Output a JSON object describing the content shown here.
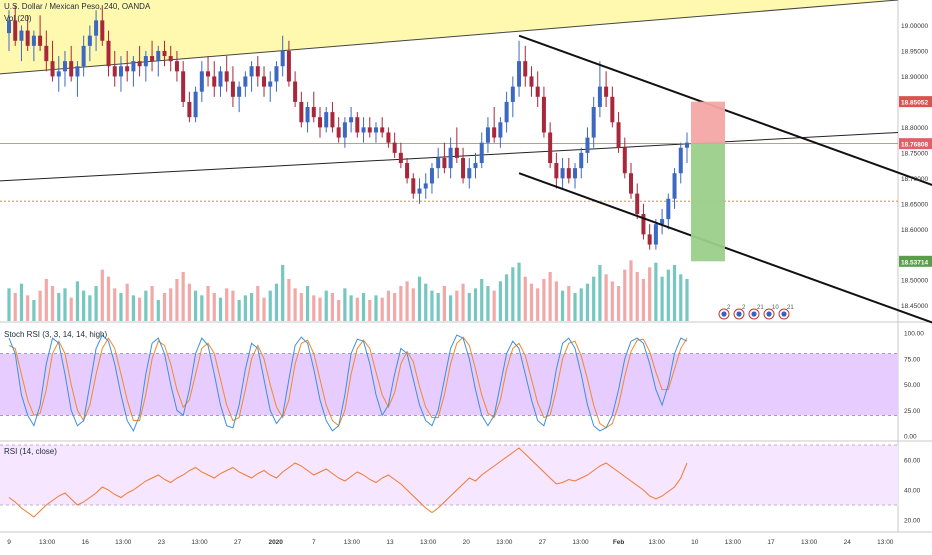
{
  "header": {
    "symbol_line": "U.S. Dollar / Mexican Peso, 240, OANDA",
    "volume_label": "Vol (20)"
  },
  "colors": {
    "up": "#3c68c2",
    "down": "#a8273a",
    "vol_up": "#76c7c0",
    "vol_down": "#f3a8a8",
    "zone_fill": "#fff9b0",
    "stoch_band": "#e6ccff",
    "rsi_band": "#f6e6ff",
    "stoch_k": "#3f8fdc",
    "stoch_d": "#f08a2a",
    "rsi_line": "#f07a30",
    "price_line": "#e0606a",
    "support_line": "#f2a23a",
    "stop_zone": "#f6a6a6",
    "target_zone": "#9ccf8a"
  },
  "price_axis": {
    "ticks": [
      "19.00000",
      "18.95000",
      "18.90000",
      "18.85052",
      "18.80000",
      "18.76808",
      "18.75000",
      "18.70000",
      "18.65000",
      "18.60000",
      "18.53714",
      "18.50000",
      "18.45000"
    ],
    "current_price": "18.76808",
    "stop_price": "18.85052",
    "target_price": "18.53714"
  },
  "stoch_axis": {
    "ticks": [
      "100.00",
      "75.00",
      "50.00",
      "25.00",
      "0.00"
    ]
  },
  "rsi_axis": {
    "ticks": [
      "60.00",
      "40.00",
      "20.00"
    ]
  },
  "time_axis": {
    "ticks": [
      "9",
      "13:00",
      "16",
      "13:00",
      "23",
      "13:00",
      "27",
      "2020",
      "7",
      "13:00",
      "13",
      "13:00",
      "20",
      "13:00",
      "27",
      "13:00",
      "Feb",
      "13:00",
      "10",
      "13:00",
      "17",
      "13:00",
      "24",
      "13:00"
    ]
  },
  "indicators": {
    "stoch_label": "Stoch RSI (3, 3, 14, 14, high)",
    "rsi_label": "RSI (14, close)"
  },
  "events": {
    "labels": [
      "2",
      "2",
      "21",
      "10",
      "21"
    ]
  },
  "chart_data": {
    "type": "candlestick",
    "title": "U.S. Dollar / Mexican Peso, 240, OANDA",
    "interval": "240",
    "x_tick_labels": [
      "9",
      "13:00",
      "16",
      "13:00",
      "23",
      "13:00",
      "27",
      "2020",
      "7",
      "13:00",
      "13",
      "13:00",
      "20",
      "13:00",
      "27",
      "13:00",
      "Feb",
      "13:00",
      "10",
      "13:00",
      "17",
      "13:00",
      "24",
      "13:00"
    ],
    "ylim": [
      18.42,
      19.05
    ],
    "candles": {
      "columns": [
        "open",
        "high",
        "low",
        "close"
      ],
      "rows": [
        [
          18.985,
          19.03,
          18.95,
          19.01
        ],
        [
          19.01,
          19.04,
          18.96,
          18.97
        ],
        [
          18.97,
          19.0,
          18.93,
          18.99
        ],
        [
          18.99,
          19.02,
          18.95,
          18.96
        ],
        [
          18.96,
          18.99,
          18.93,
          18.98
        ],
        [
          18.98,
          19.02,
          18.95,
          18.96
        ],
        [
          18.96,
          18.99,
          18.91,
          18.93
        ],
        [
          18.93,
          18.97,
          18.89,
          18.9
        ],
        [
          18.9,
          18.94,
          18.87,
          18.91
        ],
        [
          18.91,
          18.95,
          18.88,
          18.93
        ],
        [
          18.93,
          18.96,
          18.89,
          18.9
        ],
        [
          18.9,
          18.93,
          18.86,
          18.92
        ],
        [
          18.92,
          18.98,
          18.9,
          18.96
        ],
        [
          18.96,
          19.0,
          18.93,
          18.98
        ],
        [
          18.98,
          19.03,
          18.95,
          19.01
        ],
        [
          19.01,
          19.04,
          18.96,
          18.97
        ],
        [
          18.97,
          18.99,
          18.9,
          18.92
        ],
        [
          18.92,
          18.95,
          18.88,
          18.9
        ],
        [
          18.9,
          18.94,
          18.87,
          18.92
        ],
        [
          18.92,
          18.95,
          18.89,
          18.91
        ],
        [
          18.91,
          18.94,
          18.88,
          18.93
        ],
        [
          18.93,
          18.96,
          18.9,
          18.92
        ],
        [
          18.92,
          18.95,
          18.89,
          18.94
        ],
        [
          18.94,
          18.97,
          18.91,
          18.93
        ],
        [
          18.93,
          18.96,
          18.9,
          18.95
        ],
        [
          18.95,
          18.97,
          18.92,
          18.94
        ],
        [
          18.94,
          18.96,
          18.91,
          18.93
        ],
        [
          18.93,
          18.95,
          18.89,
          18.91
        ],
        [
          18.91,
          18.93,
          18.84,
          18.85
        ],
        [
          18.85,
          18.87,
          18.81,
          18.82
        ],
        [
          18.82,
          18.88,
          18.81,
          18.87
        ],
        [
          18.87,
          18.93,
          18.85,
          18.91
        ],
        [
          18.91,
          18.94,
          18.88,
          18.9
        ],
        [
          18.9,
          18.93,
          18.86,
          18.88
        ],
        [
          18.88,
          18.92,
          18.86,
          18.91
        ],
        [
          18.91,
          18.94,
          18.87,
          18.89
        ],
        [
          18.89,
          18.92,
          18.84,
          18.86
        ],
        [
          18.86,
          18.89,
          18.83,
          18.88
        ],
        [
          18.88,
          18.91,
          18.86,
          18.9
        ],
        [
          18.9,
          18.93,
          18.87,
          18.92
        ],
        [
          18.92,
          18.94,
          18.88,
          18.9
        ],
        [
          18.9,
          18.92,
          18.86,
          18.88
        ],
        [
          18.88,
          18.91,
          18.85,
          18.89
        ],
        [
          18.89,
          18.93,
          18.87,
          18.92
        ],
        [
          18.92,
          18.98,
          18.9,
          18.95
        ],
        [
          18.95,
          18.97,
          18.88,
          18.89
        ],
        [
          18.89,
          18.91,
          18.84,
          18.85
        ],
        [
          18.85,
          18.87,
          18.8,
          18.81
        ],
        [
          18.81,
          18.85,
          18.79,
          18.84
        ],
        [
          18.84,
          18.87,
          18.81,
          18.82
        ],
        [
          18.82,
          18.84,
          18.78,
          18.8
        ],
        [
          18.8,
          18.84,
          18.79,
          18.83
        ],
        [
          18.83,
          18.85,
          18.79,
          18.8
        ],
        [
          18.8,
          18.82,
          18.77,
          18.78
        ],
        [
          18.78,
          18.82,
          18.76,
          18.81
        ],
        [
          18.81,
          18.84,
          18.79,
          18.82
        ],
        [
          18.82,
          18.83,
          18.78,
          18.79
        ],
        [
          18.79,
          18.82,
          18.77,
          18.8
        ],
        [
          18.8,
          18.82,
          18.78,
          18.79
        ],
        [
          18.79,
          18.81,
          18.77,
          18.8
        ],
        [
          18.8,
          18.82,
          18.78,
          18.79
        ],
        [
          18.79,
          18.8,
          18.76,
          18.77
        ],
        [
          18.77,
          18.79,
          18.74,
          18.75
        ],
        [
          18.75,
          18.77,
          18.72,
          18.73
        ],
        [
          18.73,
          18.74,
          18.69,
          18.7
        ],
        [
          18.7,
          18.71,
          18.66,
          18.67
        ],
        [
          18.67,
          18.7,
          18.65,
          18.68
        ],
        [
          18.68,
          18.71,
          18.66,
          18.69
        ],
        [
          18.69,
          18.73,
          18.67,
          18.72
        ],
        [
          18.72,
          18.76,
          18.7,
          18.74
        ],
        [
          18.74,
          18.77,
          18.71,
          18.72
        ],
        [
          18.72,
          18.78,
          18.7,
          18.76
        ],
        [
          18.76,
          18.8,
          18.73,
          18.74
        ],
        [
          18.74,
          18.76,
          18.69,
          18.7
        ],
        [
          18.7,
          18.74,
          18.68,
          18.72
        ],
        [
          18.72,
          18.75,
          18.7,
          18.73
        ],
        [
          18.73,
          18.79,
          18.72,
          18.77
        ],
        [
          18.77,
          18.82,
          18.75,
          18.8
        ],
        [
          18.8,
          18.84,
          18.77,
          18.78
        ],
        [
          18.78,
          18.82,
          18.76,
          18.81
        ],
        [
          18.81,
          18.87,
          18.79,
          18.85
        ],
        [
          18.85,
          18.9,
          18.82,
          18.88
        ],
        [
          18.88,
          18.97,
          18.86,
          18.93
        ],
        [
          18.93,
          18.96,
          18.88,
          18.9
        ],
        [
          18.9,
          18.92,
          18.86,
          18.88
        ],
        [
          18.88,
          18.91,
          18.84,
          18.86
        ],
        [
          18.86,
          18.88,
          18.78,
          18.79
        ],
        [
          18.79,
          18.81,
          18.72,
          18.73
        ],
        [
          18.73,
          18.75,
          18.68,
          18.7
        ],
        [
          18.7,
          18.74,
          18.68,
          18.72
        ],
        [
          18.72,
          18.74,
          18.69,
          18.7
        ],
        [
          18.7,
          18.73,
          18.68,
          18.72
        ],
        [
          18.72,
          18.76,
          18.7,
          18.75
        ],
        [
          18.75,
          18.8,
          18.73,
          18.78
        ],
        [
          18.78,
          18.86,
          18.76,
          18.84
        ],
        [
          18.84,
          18.93,
          18.82,
          18.88
        ],
        [
          18.88,
          18.91,
          18.84,
          18.86
        ],
        [
          18.86,
          18.88,
          18.8,
          18.81
        ],
        [
          18.81,
          18.83,
          18.75,
          18.76
        ],
        [
          18.76,
          18.78,
          18.7,
          18.71
        ],
        [
          18.71,
          18.73,
          18.66,
          18.67
        ],
        [
          18.67,
          18.69,
          18.62,
          18.63
        ],
        [
          18.63,
          18.65,
          18.58,
          18.59
        ],
        [
          18.59,
          18.61,
          18.56,
          18.57
        ],
        [
          18.57,
          18.62,
          18.56,
          18.61
        ],
        [
          18.61,
          18.64,
          18.59,
          18.62
        ],
        [
          18.62,
          18.67,
          18.6,
          18.66
        ],
        [
          18.66,
          18.72,
          18.64,
          18.71
        ],
        [
          18.71,
          18.77,
          18.69,
          18.76
        ],
        [
          18.76,
          18.79,
          18.73,
          18.77
        ]
      ]
    },
    "volume": [
      14,
      12,
      16,
      11,
      9,
      13,
      18,
      15,
      12,
      14,
      10,
      17,
      13,
      11,
      15,
      22,
      19,
      14,
      12,
      16,
      11,
      10,
      13,
      15,
      9,
      12,
      14,
      18,
      21,
      16,
      13,
      11,
      15,
      12,
      10,
      14,
      13,
      9,
      11,
      12,
      15,
      10,
      13,
      16,
      24,
      18,
      14,
      12,
      15,
      11,
      10,
      13,
      12,
      9,
      14,
      11,
      10,
      12,
      9,
      11,
      10,
      13,
      12,
      15,
      17,
      14,
      19,
      16,
      13,
      12,
      15,
      11,
      13,
      16,
      12,
      14,
      18,
      15,
      13,
      17,
      20,
      23,
      25,
      19,
      16,
      14,
      18,
      21,
      17,
      13,
      15,
      12,
      14,
      16,
      19,
      24,
      20,
      17,
      15,
      22,
      26,
      21,
      18,
      23,
      25,
      19,
      22,
      24,
      20,
      18
    ],
    "levels": {
      "current_price": 18.76808,
      "stop": 18.85052,
      "target": 18.53714,
      "support": 18.655
    },
    "trendlines": [
      {
        "name": "upper_zone",
        "from": [
          "start",
          18.905
        ],
        "to": [
          "end",
          19.05
        ]
      },
      {
        "name": "rising_line",
        "from": [
          "start",
          18.695
        ],
        "to": [
          "end",
          18.79
        ]
      },
      {
        "name": "channel_upper",
        "from": [
          82,
          18.98
        ],
        "to": [
          150,
          18.68
        ]
      },
      {
        "name": "channel_lower",
        "from": [
          82,
          18.71
        ],
        "to": [
          150,
          18.41
        ]
      }
    ],
    "stoch_rsi": {
      "k": [
        95,
        80,
        40,
        20,
        10,
        30,
        70,
        95,
        90,
        60,
        25,
        10,
        15,
        50,
        85,
        98,
        92,
        70,
        40,
        15,
        5,
        20,
        60,
        90,
        95,
        80,
        50,
        25,
        20,
        45,
        80,
        95,
        88,
        60,
        30,
        10,
        8,
        30,
        65,
        90,
        85,
        55,
        25,
        12,
        20,
        55,
        88,
        96,
        90,
        65,
        35,
        15,
        5,
        10,
        40,
        80,
        94,
        92,
        70,
        40,
        20,
        30,
        60,
        85,
        80,
        55,
        30,
        15,
        10,
        25,
        55,
        85,
        98,
        95,
        75,
        45,
        20,
        10,
        20,
        50,
        80,
        92,
        85,
        60,
        35,
        15,
        10,
        30,
        65,
        90,
        95,
        85,
        60,
        30,
        10,
        5,
        8,
        20,
        45,
        75,
        92,
        95,
        90,
        70,
        45,
        30,
        50,
        80,
        95,
        92
      ],
      "d": [
        88,
        85,
        60,
        35,
        20,
        22,
        45,
        80,
        92,
        80,
        50,
        25,
        15,
        30,
        60,
        85,
        95,
        85,
        60,
        35,
        15,
        15,
        40,
        75,
        92,
        88,
        70,
        45,
        28,
        35,
        60,
        85,
        90,
        80,
        55,
        30,
        15,
        18,
        45,
        75,
        88,
        75,
        50,
        28,
        18,
        35,
        70,
        90,
        93,
        80,
        55,
        30,
        15,
        10,
        25,
        60,
        85,
        93,
        85,
        62,
        40,
        28,
        42,
        70,
        82,
        72,
        48,
        28,
        18,
        18,
        40,
        70,
        90,
        96,
        88,
        65,
        40,
        22,
        18,
        35,
        65,
        85,
        90,
        78,
        55,
        32,
        18,
        20,
        45,
        75,
        90,
        92,
        78,
        55,
        30,
        12,
        8,
        12,
        30,
        58,
        82,
        93,
        94,
        82,
        62,
        45,
        45,
        65,
        85,
        95
      ]
    },
    "rsi": [
      35,
      32,
      28,
      25,
      22,
      26,
      30,
      33,
      36,
      38,
      34,
      30,
      32,
      35,
      38,
      42,
      40,
      37,
      35,
      38,
      40,
      43,
      46,
      48,
      50,
      47,
      45,
      48,
      50,
      53,
      55,
      52,
      50,
      48,
      51,
      53,
      55,
      52,
      50,
      48,
      51,
      53,
      50,
      48,
      52,
      55,
      58,
      56,
      53,
      50,
      52,
      54,
      51,
      48,
      46,
      49,
      52,
      50,
      47,
      45,
      48,
      50,
      47,
      44,
      40,
      36,
      32,
      28,
      25,
      28,
      32,
      36,
      40,
      44,
      48,
      46,
      50,
      53,
      56,
      59,
      62,
      65,
      68,
      64,
      60,
      56,
      52,
      48,
      44,
      45,
      47,
      46,
      48,
      50,
      53,
      56,
      58,
      55,
      52,
      49,
      46,
      43,
      40,
      36,
      34,
      36,
      39,
      42,
      48,
      58
    ]
  }
}
